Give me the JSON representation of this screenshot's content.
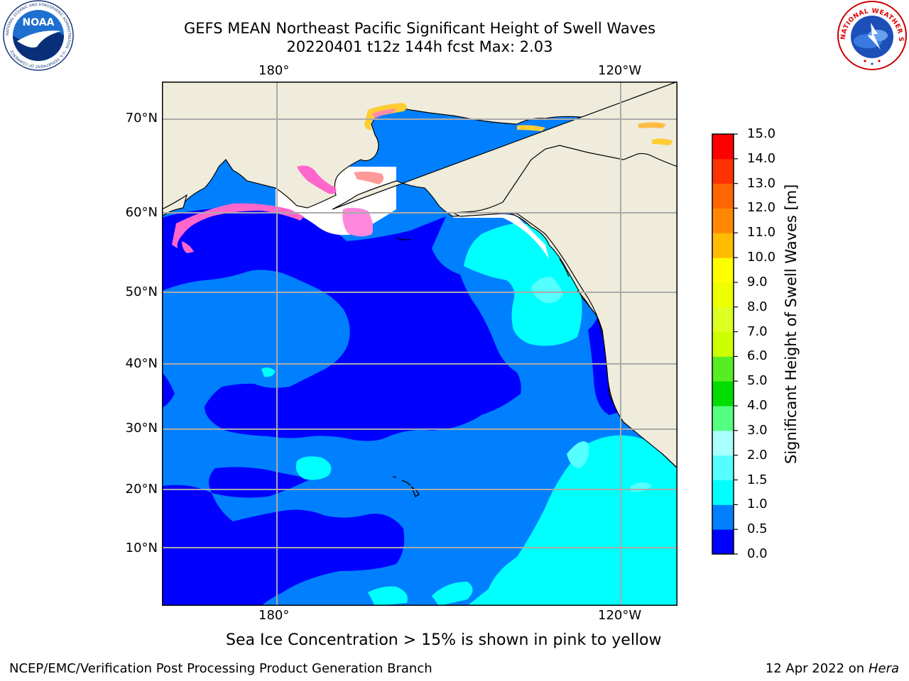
{
  "header": {
    "title_line1": "GEFS MEAN Northeast Pacific Significant Height of Swell Waves",
    "title_line2": "20220401 t12z 144h fcst   Max: 2.03"
  },
  "map": {
    "lon_labels_top": [
      "180°",
      "120°W"
    ],
    "lon_labels_bottom": [
      "180°",
      "120°W"
    ],
    "lat_labels": [
      "70°N",
      "60°N",
      "50°N",
      "40°N",
      "30°N",
      "20°N",
      "10°N"
    ],
    "land_color": "#efecdc",
    "ice_colors": [
      "#ff66cc",
      "#ff9999",
      "#ffcc33",
      "#ffee55"
    ]
  },
  "colorbar": {
    "label": "Significant Height of Swell Waves [m]",
    "ticks": [
      "15.0",
      "14.0",
      "13.0",
      "12.0",
      "11.0",
      "10.0",
      "9.0",
      "8.0",
      "7.0",
      "6.0",
      "5.0",
      "4.0",
      "3.0",
      "2.0",
      "1.5",
      "1.0",
      "0.5",
      "0.0"
    ],
    "bands": [
      {
        "from": 0.0,
        "to": 0.5,
        "color": "#0000ff"
      },
      {
        "from": 0.5,
        "to": 1.0,
        "color": "#0080ff"
      },
      {
        "from": 1.0,
        "to": 1.5,
        "color": "#00ffff"
      },
      {
        "from": 1.5,
        "to": 2.0,
        "color": "#55ffff"
      },
      {
        "from": 2.0,
        "to": 3.0,
        "color": "#aaffff"
      },
      {
        "from": 3.0,
        "to": 4.0,
        "color": "#55ff80"
      },
      {
        "from": 4.0,
        "to": 5.0,
        "color": "#00dd00"
      },
      {
        "from": 5.0,
        "to": 6.0,
        "color": "#55ee22"
      },
      {
        "from": 6.0,
        "to": 7.0,
        "color": "#ccff00"
      },
      {
        "from": 7.0,
        "to": 8.0,
        "color": "#ddff22"
      },
      {
        "from": 8.0,
        "to": 9.0,
        "color": "#eeff00"
      },
      {
        "from": 9.0,
        "to": 10.0,
        "color": "#ffff00"
      },
      {
        "from": 10.0,
        "to": 11.0,
        "color": "#ffbb00"
      },
      {
        "from": 11.0,
        "to": 12.0,
        "color": "#ff8800"
      },
      {
        "from": 12.0,
        "to": 13.0,
        "color": "#ff6600"
      },
      {
        "from": 13.0,
        "to": 14.0,
        "color": "#ff3300"
      },
      {
        "from": 14.0,
        "to": 15.0,
        "color": "#ff0000"
      }
    ]
  },
  "note": "Sea Ice Concentration > 15% is shown in pink to yellow",
  "footer": {
    "left": "NCEP/EMC/Verification Post Processing Product Generation Branch",
    "date": "12 Apr 2022 on ",
    "host": "Hera"
  },
  "logos": {
    "noaa_text": "NOAA",
    "noaa_ring_text": "NATIONAL OCEANIC AND ATMOSPHERIC ADMINISTRATION · U.S. DEPARTMENT OF COMMERCE",
    "nws_ring_text": "NATIONAL WEATHER SERVICE"
  }
}
